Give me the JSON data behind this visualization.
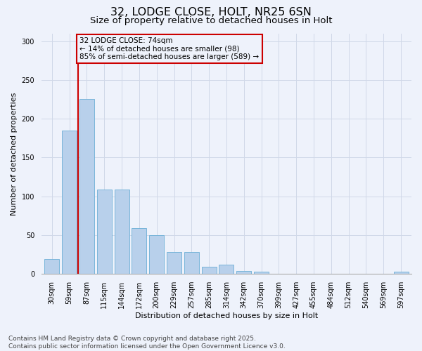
{
  "title_line1": "32, LODGE CLOSE, HOLT, NR25 6SN",
  "title_line2": "Size of property relative to detached houses in Holt",
  "xlabel": "Distribution of detached houses by size in Holt",
  "ylabel": "Number of detached properties",
  "bar_labels": [
    "30sqm",
    "59sqm",
    "87sqm",
    "115sqm",
    "144sqm",
    "172sqm",
    "200sqm",
    "229sqm",
    "257sqm",
    "285sqm",
    "314sqm",
    "342sqm",
    "370sqm",
    "399sqm",
    "427sqm",
    "455sqm",
    "484sqm",
    "512sqm",
    "540sqm",
    "569sqm",
    "597sqm"
  ],
  "bar_values": [
    19,
    185,
    225,
    109,
    109,
    59,
    50,
    28,
    28,
    9,
    12,
    4,
    3,
    0,
    0,
    0,
    0,
    0,
    0,
    0,
    3
  ],
  "bar_color": "#b8d0eb",
  "bar_edge_color": "#6aaed6",
  "bg_color": "#eef2fb",
  "grid_color": "#d0d8e8",
  "vline_x": 1.5,
  "vline_color": "#cc0000",
  "annotation_line1": "32 LODGE CLOSE: 74sqm",
  "annotation_line2": "← 14% of detached houses are smaller (98)",
  "annotation_line3": "85% of semi-detached houses are larger (589) →",
  "annotation_box_color": "#cc0000",
  "footer_line1": "Contains HM Land Registry data © Crown copyright and database right 2025.",
  "footer_line2": "Contains public sector information licensed under the Open Government Licence v3.0.",
  "ylim": [
    0,
    310
  ],
  "yticks": [
    0,
    50,
    100,
    150,
    200,
    250,
    300
  ],
  "title_fontsize": 11.5,
  "subtitle_fontsize": 9.5,
  "axis_label_fontsize": 8,
  "tick_fontsize": 7,
  "annotation_fontsize": 7.5,
  "footer_fontsize": 6.5
}
